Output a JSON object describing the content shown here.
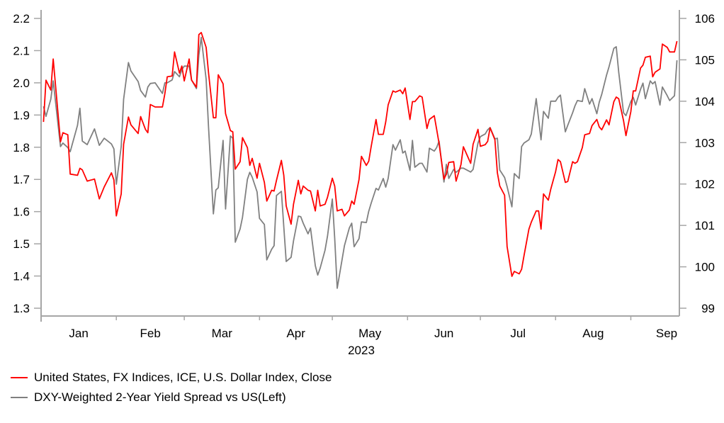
{
  "chart_data": {
    "type": "line",
    "title": "",
    "xlabel": "2023",
    "x_tick_labels": [
      "Jan",
      "Feb",
      "Mar",
      "Apr",
      "May",
      "Jun",
      "Jul",
      "Aug",
      "Sep"
    ],
    "xlim": [
      "2023-01-01",
      "2023-09-21"
    ],
    "y_left": {
      "lim": [
        1.3,
        2.2
      ],
      "ticks": [
        "1.3",
        "1.4",
        "1.5",
        "1.6",
        "1.7",
        "1.8",
        "1.9",
        "2.0",
        "2.1",
        "2.2"
      ]
    },
    "y_right": {
      "lim": [
        99,
        106
      ],
      "ticks": [
        "99",
        "100",
        "101",
        "102",
        "103",
        "104",
        "105",
        "106"
      ]
    },
    "grid": false,
    "legend_position": "bottom-left",
    "dates": [
      "2023-01-02",
      "2023-01-03",
      "2023-01-05",
      "2023-01-06",
      "2023-01-09",
      "2023-01-10",
      "2023-01-12",
      "2023-01-13",
      "2023-01-16",
      "2023-01-17",
      "2023-01-18",
      "2023-01-20",
      "2023-01-23",
      "2023-01-25",
      "2023-01-27",
      "2023-01-30",
      "2023-01-31",
      "2023-02-01",
      "2023-02-03",
      "2023-02-04",
      "2023-02-06",
      "2023-02-07",
      "2023-02-10",
      "2023-02-11",
      "2023-02-13",
      "2023-02-14",
      "2023-02-15",
      "2023-02-17",
      "2023-02-20",
      "2023-02-21",
      "2023-02-22",
      "2023-02-24",
      "2023-02-25",
      "2023-02-27",
      "2023-02-28",
      "2023-03-01",
      "2023-03-03",
      "2023-03-04",
      "2023-03-06",
      "2023-03-07",
      "2023-03-08",
      "2023-03-10",
      "2023-03-11",
      "2023-03-13",
      "2023-03-14",
      "2023-03-15",
      "2023-03-17",
      "2023-03-18",
      "2023-03-20",
      "2023-03-21",
      "2023-03-22",
      "2023-03-24",
      "2023-03-25",
      "2023-03-27",
      "2023-03-28",
      "2023-03-29",
      "2023-03-31",
      "2023-04-01",
      "2023-04-03",
      "2023-04-04",
      "2023-04-06",
      "2023-04-07",
      "2023-04-08",
      "2023-04-10",
      "2023-04-11",
      "2023-04-12",
      "2023-04-14",
      "2023-04-15",
      "2023-04-17",
      "2023-04-18",
      "2023-04-19",
      "2023-04-21",
      "2023-04-22",
      "2023-04-24",
      "2023-04-25",
      "2023-04-26",
      "2023-04-28",
      "2023-04-29",
      "2023-05-01",
      "2023-05-02",
      "2023-05-03",
      "2023-05-05",
      "2023-05-06",
      "2023-05-08",
      "2023-05-09",
      "2023-05-10",
      "2023-05-12",
      "2023-05-13",
      "2023-05-15",
      "2023-05-16",
      "2023-05-17",
      "2023-05-19",
      "2023-05-20",
      "2023-05-22",
      "2023-05-23",
      "2023-05-24",
      "2023-05-26",
      "2023-05-27",
      "2023-05-29",
      "2023-05-30",
      "2023-05-31",
      "2023-06-02",
      "2023-06-03",
      "2023-06-04",
      "2023-06-06",
      "2023-06-07",
      "2023-06-09",
      "2023-06-10",
      "2023-06-12",
      "2023-06-13",
      "2023-06-14",
      "2023-06-16",
      "2023-06-17",
      "2023-06-18",
      "2023-06-20",
      "2023-06-21",
      "2023-06-23",
      "2023-06-24",
      "2023-06-27",
      "2023-06-28",
      "2023-06-30",
      "2023-07-01",
      "2023-07-03",
      "2023-07-04",
      "2023-07-05",
      "2023-07-07",
      "2023-07-08",
      "2023-07-09",
      "2023-07-11",
      "2023-07-12",
      "2023-07-14",
      "2023-07-15",
      "2023-07-17",
      "2023-07-18",
      "2023-07-19",
      "2023-07-21",
      "2023-07-22",
      "2023-07-24",
      "2023-07-25",
      "2023-07-26",
      "2023-07-27",
      "2023-07-29",
      "2023-07-30",
      "2023-08-01",
      "2023-08-02",
      "2023-08-03",
      "2023-08-05",
      "2023-08-06",
      "2023-08-08",
      "2023-08-09",
      "2023-08-10",
      "2023-08-12",
      "2023-08-13",
      "2023-08-15",
      "2023-08-16",
      "2023-08-18",
      "2023-08-19",
      "2023-08-20",
      "2023-08-22",
      "2023-08-23",
      "2023-08-25",
      "2023-08-26",
      "2023-08-27",
      "2023-08-29",
      "2023-08-30",
      "2023-09-01",
      "2023-09-02",
      "2023-09-03",
      "2023-09-05",
      "2023-09-06",
      "2023-09-07",
      "2023-09-09",
      "2023-09-10",
      "2023-09-11",
      "2023-09-13",
      "2023-09-14",
      "2023-09-16",
      "2023-09-17",
      "2023-09-19",
      "2023-09-20"
    ],
    "series": [
      {
        "name": "United States, FX Indices, ICE, U.S. Dollar Index, Close",
        "axis": "right",
        "color": "#ff0000",
        "values": [
          103.5,
          104.51,
          104.27,
          105.02,
          103.02,
          103.24,
          103.19,
          102.24,
          102.21,
          102.38,
          102.34,
          102.07,
          102.12,
          101.64,
          101.93,
          102.27,
          102.1,
          101.23,
          101.76,
          102.96,
          103.62,
          103.43,
          103.22,
          103.63,
          103.32,
          103.24,
          103.92,
          103.86,
          103.86,
          104.18,
          104.59,
          104.61,
          105.19,
          104.68,
          104.85,
          104.49,
          105.02,
          104.51,
          104.34,
          105.61,
          105.66,
          105.3,
          104.68,
          103.6,
          103.6,
          104.64,
          104.42,
          103.7,
          103.29,
          103.26,
          102.36,
          102.54,
          103.12,
          102.88,
          102.45,
          102.62,
          102.14,
          102.5,
          102.04,
          101.59,
          101.85,
          101.83,
          102.09,
          102.57,
          102.21,
          101.47,
          101.03,
          101.51,
          102.09,
          101.76,
          101.95,
          101.85,
          101.83,
          101.35,
          101.85,
          101.47,
          101.51,
          101.68,
          102.14,
          101.95,
          101.35,
          101.39,
          101.23,
          101.37,
          101.59,
          101.51,
          102.11,
          102.67,
          102.45,
          102.55,
          102.9,
          103.56,
          103.2,
          103.2,
          103.5,
          103.91,
          104.25,
          104.22,
          104.27,
          104.18,
          104.32,
          103.56,
          103.99,
          103.99,
          104.13,
          104.1,
          103.34,
          103.56,
          103.65,
          103.32,
          102.98,
          102.12,
          102.24,
          102.52,
          102.54,
          102.07,
          102.47,
          102.9,
          102.5,
          102.96,
          103.32,
          102.91,
          102.95,
          103.03,
          103.36,
          103.07,
          102.27,
          101.95,
          101.73,
          100.49,
          99.77,
          99.89,
          99.83,
          99.94,
          100.27,
          100.91,
          101.08,
          101.35,
          101.35,
          100.91,
          101.76,
          101.61,
          101.87,
          102.3,
          102.59,
          102.54,
          102.04,
          102.06,
          102.54,
          102.5,
          102.54,
          102.88,
          103.19,
          103.22,
          103.41,
          103.56,
          103.38,
          103.31,
          103.55,
          103.43,
          103.99,
          104.1,
          104.06,
          103.53,
          103.17,
          103.75,
          104.25,
          104.25,
          104.8,
          104.87,
          105.06,
          105.09,
          104.59,
          104.7,
          104.78,
          105.38,
          105.3,
          105.19,
          105.19,
          105.45
        ]
      },
      {
        "name": "DXY-Weighted 2-Year Yield Spread vs US(Left)",
        "axis": "left",
        "color": "#808080",
        "values": [
          1.927,
          1.896,
          1.949,
          2.006,
          1.802,
          1.813,
          1.799,
          1.786,
          1.868,
          1.921,
          1.819,
          1.808,
          1.857,
          1.806,
          1.828,
          1.81,
          1.795,
          1.685,
          1.802,
          1.949,
          2.063,
          2.037,
          2.004,
          1.976,
          1.956,
          1.987,
          1.998,
          2.0,
          1.967,
          2.0,
          2.0,
          2.009,
          2.035,
          2.019,
          2.041,
          2.052,
          2.052,
          2.009,
          1.982,
          2.086,
          2.141,
          2.011,
          1.861,
          1.593,
          1.667,
          1.674,
          1.821,
          1.608,
          1.835,
          1.828,
          1.505,
          1.546,
          1.582,
          1.7,
          1.722,
          1.707,
          1.661,
          1.579,
          1.56,
          1.45,
          1.483,
          1.494,
          1.65,
          1.663,
          1.553,
          1.445,
          1.458,
          1.509,
          1.586,
          1.584,
          1.564,
          1.531,
          1.549,
          1.432,
          1.403,
          1.425,
          1.48,
          1.524,
          1.639,
          1.516,
          1.362,
          1.45,
          1.494,
          1.549,
          1.564,
          1.491,
          1.516,
          1.568,
          1.566,
          1.601,
          1.626,
          1.672,
          1.667,
          1.703,
          1.676,
          1.703,
          1.808,
          1.791,
          1.823,
          1.782,
          1.788,
          1.728,
          1.821,
          1.738,
          1.75,
          1.75,
          1.723,
          1.797,
          1.788,
          1.799,
          1.819,
          1.692,
          1.747,
          1.703,
          1.731,
          1.722,
          1.735,
          1.735,
          1.723,
          1.731,
          1.813,
          1.833,
          1.841,
          1.854,
          1.861,
          1.826,
          1.828,
          1.729,
          1.706,
          1.678,
          1.615,
          1.718,
          1.703,
          1.802,
          1.813,
          1.823,
          1.841,
          1.951,
          1.887,
          1.823,
          1.911,
          1.89,
          1.943,
          1.943,
          1.955,
          1.962,
          1.848,
          1.868,
          1.907,
          1.929,
          1.945,
          1.942,
          1.982,
          1.934,
          1.951,
          1.904,
          1.94,
          1.964,
          2.024,
          2.05,
          2.107,
          2.112,
          2.033,
          1.907,
          1.898,
          1.942,
          1.955,
          1.931,
          1.98,
          1.999,
          1.951,
          2.006,
          1.997,
          2.004,
          1.931,
          1.987,
          1.96,
          1.945,
          1.96,
          2.07
        ]
      }
    ]
  }
}
